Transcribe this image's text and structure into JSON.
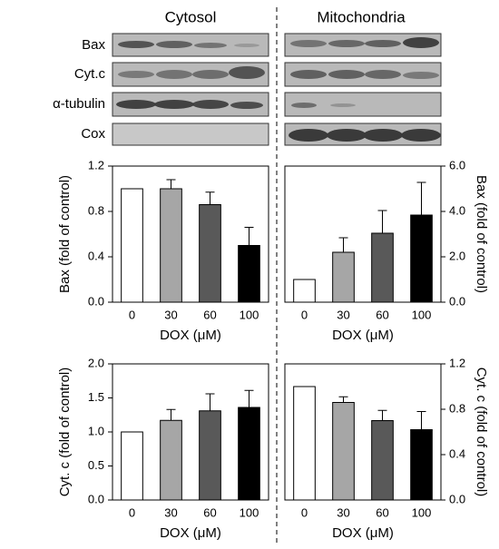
{
  "blot": {
    "columns": [
      "Cytosol",
      "Mitochondria"
    ],
    "rows": [
      "Bax",
      "Cyt.c",
      "α-tubulin",
      "Cox"
    ]
  },
  "chart_data": [
    {
      "type": "bar",
      "ylabel": "Bax (fold of control)",
      "xlabel": "DOX (μM)",
      "yaxis_side": "left",
      "categories": [
        "0",
        "30",
        "60",
        "100"
      ],
      "values": [
        1.0,
        1.0,
        0.86,
        0.5
      ],
      "errors": [
        0,
        0.08,
        0.11,
        0.16
      ],
      "colors": [
        "#ffffff",
        "#a6a6a6",
        "#595959",
        "#000000"
      ],
      "ylim": [
        0,
        1.2
      ],
      "yticks": [
        {
          "value": 0,
          "label": "0.0"
        },
        0.4,
        0.8,
        1.2
      ]
    },
    {
      "type": "bar",
      "ylabel": "Bax (fold of control)",
      "xlabel": "DOX (μM)",
      "yaxis_side": "right",
      "categories": [
        "0",
        "30",
        "60",
        "100"
      ],
      "values": [
        1.0,
        2.2,
        3.04,
        3.84
      ],
      "errors": [
        0,
        0.64,
        1.0,
        1.44
      ],
      "colors": [
        "#ffffff",
        "#a6a6a6",
        "#595959",
        "#000000"
      ],
      "ylim": [
        0,
        6
      ],
      "yticks": [
        {
          "value": 0,
          "label": "0.0"
        },
        {
          "value": 2,
          "label": "2.0"
        },
        {
          "value": 4,
          "label": "4.0"
        },
        {
          "value": 6,
          "label": "6.0"
        }
      ]
    },
    {
      "type": "bar",
      "ylabel": "Cyt. c (fold of control)",
      "xlabel": "DOX (μM)",
      "yaxis_side": "left",
      "categories": [
        "0",
        "30",
        "60",
        "100"
      ],
      "values": [
        1.0,
        1.17,
        1.31,
        1.36
      ],
      "errors": [
        0,
        0.16,
        0.25,
        0.25
      ],
      "colors": [
        "#ffffff",
        "#a6a6a6",
        "#595959",
        "#000000"
      ],
      "ylim": [
        0,
        2
      ],
      "yticks": [
        {
          "value": 0,
          "label": "0.0"
        },
        0.5,
        {
          "value": 1,
          "label": "1.0"
        },
        1.5,
        {
          "value": 2,
          "label": "2.0"
        }
      ]
    },
    {
      "type": "bar",
      "ylabel": "Cyt. c (fold of control)",
      "xlabel": "DOX (μM)",
      "yaxis_side": "right",
      "categories": [
        "0",
        "30",
        "60",
        "100"
      ],
      "values": [
        1.0,
        0.86,
        0.7,
        0.62
      ],
      "errors": [
        0,
        0.05,
        0.09,
        0.16
      ],
      "colors": [
        "#ffffff",
        "#a6a6a6",
        "#595959",
        "#000000"
      ],
      "ylim": [
        0,
        1.2
      ],
      "yticks": [
        {
          "value": 0,
          "label": "0.0"
        },
        0.4,
        0.8,
        1.2
      ]
    }
  ]
}
